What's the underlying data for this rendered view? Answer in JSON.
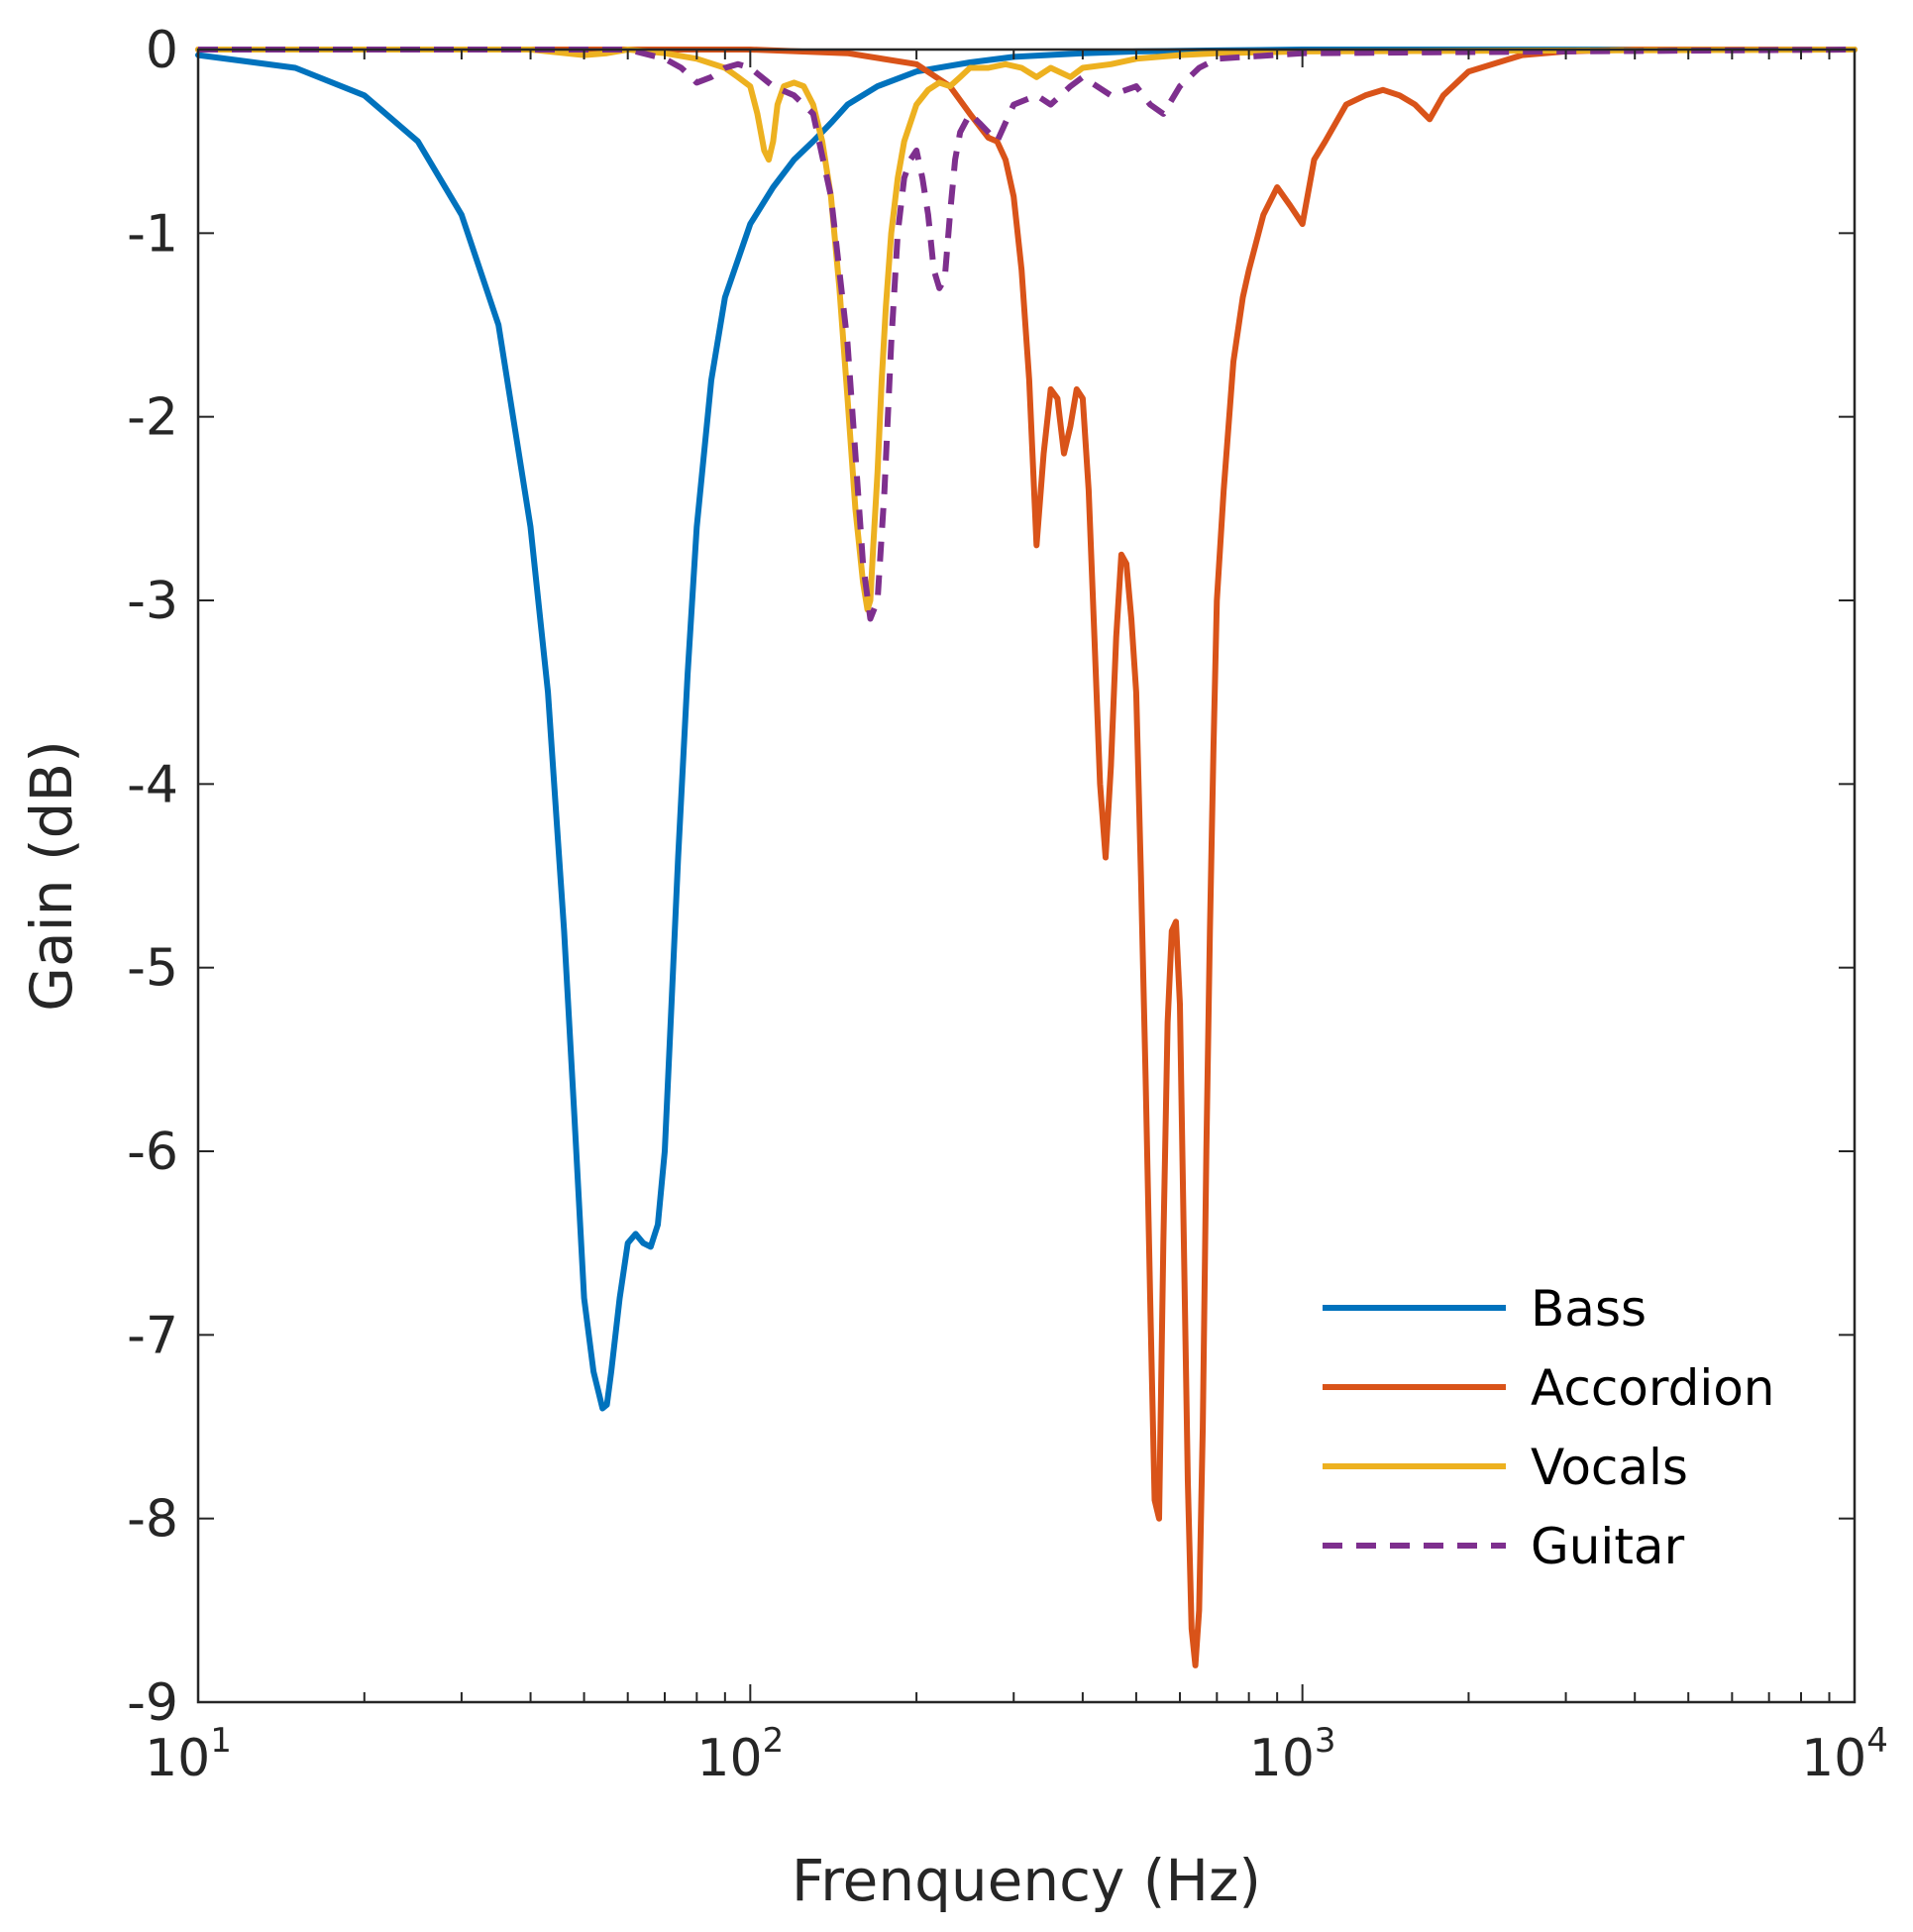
{
  "chart_data": {
    "type": "line",
    "title": "",
    "xlabel": "Frenquency (Hz)",
    "ylabel": "Gain (dB)",
    "xscale": "log",
    "xlim": [
      10,
      10000
    ],
    "ylim": [
      -9,
      0
    ],
    "x_ticks": [
      {
        "base": "10",
        "exp": "1",
        "value": 10
      },
      {
        "base": "10",
        "exp": "2",
        "value": 100
      },
      {
        "base": "10",
        "exp": "3",
        "value": 1000
      },
      {
        "base": "10",
        "exp": "4",
        "value": 10000
      }
    ],
    "y_ticks": [
      {
        "label": "0",
        "value": 0
      },
      {
        "label": "-1",
        "value": -1
      },
      {
        "label": "-2",
        "value": -2
      },
      {
        "label": "-3",
        "value": -3
      },
      {
        "label": "-4",
        "value": -4
      },
      {
        "label": "-5",
        "value": -5
      },
      {
        "label": "-6",
        "value": -6
      },
      {
        "label": "-7",
        "value": -7
      },
      {
        "label": "-8",
        "value": -8
      },
      {
        "label": "-9",
        "value": -9
      }
    ],
    "grid": false,
    "legend_position": "bottom-right",
    "series": [
      {
        "name": "Bass",
        "color": "#0072BD",
        "dash": false,
        "x": [
          10,
          15,
          20,
          25,
          30,
          35,
          40,
          43,
          46,
          48,
          50,
          52,
          54,
          55,
          56,
          58,
          60,
          62,
          64,
          66,
          68,
          70,
          72,
          74,
          77,
          80,
          85,
          90,
          100,
          110,
          120,
          130,
          140,
          150,
          170,
          200,
          250,
          300,
          400,
          500,
          700,
          1000,
          10000
        ],
        "y": [
          -0.03,
          -0.1,
          -0.25,
          -0.5,
          -0.9,
          -1.5,
          -2.6,
          -3.5,
          -4.8,
          -5.8,
          -6.8,
          -7.2,
          -7.4,
          -7.38,
          -7.2,
          -6.8,
          -6.5,
          -6.45,
          -6.5,
          -6.52,
          -6.4,
          -6.0,
          -5.2,
          -4.4,
          -3.4,
          -2.6,
          -1.8,
          -1.35,
          -0.95,
          -0.75,
          -0.6,
          -0.5,
          -0.4,
          -0.3,
          -0.2,
          -0.12,
          -0.07,
          -0.04,
          -0.02,
          -0.01,
          -0.005,
          0,
          0
        ]
      },
      {
        "name": "Accordion",
        "color": "#D95319",
        "dash": false,
        "x": [
          10,
          100,
          150,
          200,
          230,
          250,
          270,
          280,
          290,
          300,
          310,
          320,
          330,
          340,
          350,
          360,
          370,
          380,
          390,
          400,
          410,
          420,
          430,
          440,
          450,
          460,
          470,
          480,
          490,
          500,
          510,
          520,
          530,
          540,
          550,
          560,
          570,
          580,
          590,
          600,
          610,
          620,
          630,
          640,
          650,
          660,
          670,
          680,
          690,
          700,
          720,
          750,
          780,
          800,
          850,
          900,
          950,
          1000,
          1050,
          1100,
          1200,
          1300,
          1400,
          1500,
          1600,
          1700,
          1800,
          2000,
          2500,
          3000,
          4000,
          10000
        ],
        "y": [
          0,
          0,
          -0.02,
          -0.08,
          -0.2,
          -0.35,
          -0.48,
          -0.5,
          -0.6,
          -0.8,
          -1.2,
          -1.8,
          -2.7,
          -2.2,
          -1.85,
          -1.9,
          -2.2,
          -2.05,
          -1.85,
          -1.9,
          -2.4,
          -3.2,
          -4.0,
          -4.4,
          -3.9,
          -3.2,
          -2.75,
          -2.8,
          -3.1,
          -3.5,
          -4.5,
          -5.6,
          -6.8,
          -7.9,
          -8.0,
          -6.5,
          -5.3,
          -4.8,
          -4.75,
          -5.2,
          -6.5,
          -7.8,
          -8.6,
          -8.8,
          -8.5,
          -7.5,
          -6.0,
          -4.8,
          -3.8,
          -3.0,
          -2.4,
          -1.7,
          -1.35,
          -1.2,
          -0.9,
          -0.75,
          -0.85,
          -0.95,
          -0.6,
          -0.5,
          -0.3,
          -0.25,
          -0.22,
          -0.25,
          -0.3,
          -0.38,
          -0.25,
          -0.12,
          -0.03,
          -0.01,
          0,
          0
        ]
      },
      {
        "name": "Vocals",
        "color": "#EDB120",
        "dash": false,
        "x": [
          10,
          40,
          50,
          55,
          60,
          70,
          80,
          90,
          95,
          100,
          103,
          106,
          108,
          110,
          112,
          115,
          120,
          125,
          130,
          135,
          140,
          145,
          150,
          155,
          160,
          163,
          165,
          167,
          170,
          173,
          176,
          180,
          185,
          190,
          200,
          210,
          220,
          230,
          240,
          250,
          270,
          290,
          310,
          330,
          350,
          380,
          400,
          450,
          500,
          600,
          700,
          1000,
          10000
        ],
        "y": [
          0,
          0,
          -0.03,
          -0.02,
          0,
          -0.02,
          -0.05,
          -0.1,
          -0.15,
          -0.2,
          -0.35,
          -0.55,
          -0.6,
          -0.5,
          -0.3,
          -0.2,
          -0.18,
          -0.2,
          -0.3,
          -0.5,
          -0.8,
          -1.3,
          -1.9,
          -2.5,
          -2.9,
          -3.05,
          -3.0,
          -2.7,
          -2.3,
          -1.8,
          -1.4,
          -1.0,
          -0.7,
          -0.5,
          -0.3,
          -0.22,
          -0.18,
          -0.2,
          -0.15,
          -0.1,
          -0.1,
          -0.08,
          -0.1,
          -0.15,
          -0.1,
          -0.15,
          -0.1,
          -0.08,
          -0.05,
          -0.03,
          -0.02,
          -0.01,
          0
        ]
      },
      {
        "name": "Guitar",
        "color": "#7E2F8E",
        "dash": true,
        "x": [
          10,
          60,
          70,
          75,
          80,
          85,
          90,
          95,
          100,
          110,
          120,
          130,
          140,
          150,
          155,
          160,
          165,
          170,
          175,
          180,
          185,
          190,
          195,
          200,
          205,
          210,
          215,
          220,
          225,
          230,
          235,
          240,
          250,
          260,
          280,
          300,
          330,
          350,
          380,
          400,
          450,
          500,
          530,
          560,
          600,
          650,
          700,
          1000,
          10000
        ],
        "y": [
          0,
          0,
          -0.05,
          -0.1,
          -0.18,
          -0.15,
          -0.1,
          -0.08,
          -0.1,
          -0.2,
          -0.25,
          -0.35,
          -0.8,
          -1.6,
          -2.2,
          -2.8,
          -3.1,
          -3.0,
          -2.4,
          -1.6,
          -1.0,
          -0.7,
          -0.6,
          -0.55,
          -0.7,
          -0.9,
          -1.2,
          -1.3,
          -1.25,
          -0.9,
          -0.6,
          -0.45,
          -0.35,
          -0.4,
          -0.5,
          -0.3,
          -0.25,
          -0.3,
          -0.2,
          -0.15,
          -0.25,
          -0.2,
          -0.3,
          -0.35,
          -0.2,
          -0.1,
          -0.05,
          -0.02,
          0
        ]
      }
    ]
  }
}
